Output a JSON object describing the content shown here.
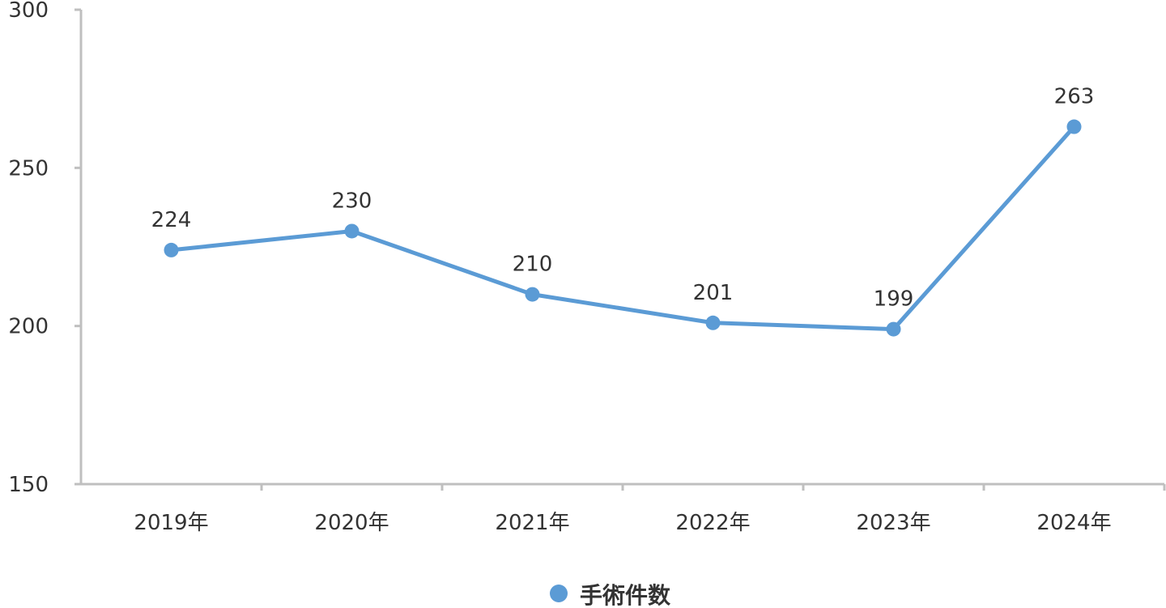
{
  "chart_data": {
    "type": "line",
    "title": "",
    "xlabel": "",
    "ylabel": "",
    "categories": [
      "2019年",
      "2020年",
      "2021年",
      "2022年",
      "2023年",
      "2024年"
    ],
    "series": [
      {
        "name": "手術件数",
        "values": [
          224,
          230,
          210,
          201,
          199,
          263
        ],
        "color": "#5B9BD5"
      }
    ],
    "ylim": [
      150,
      300
    ],
    "yticks": [
      "150",
      "200",
      "250",
      "300"
    ],
    "data_labels": [
      "224",
      "230",
      "210",
      "201",
      "199",
      "263"
    ],
    "grid": false,
    "legend_position": "bottom-center",
    "axis_color": "#BFBFBF"
  }
}
